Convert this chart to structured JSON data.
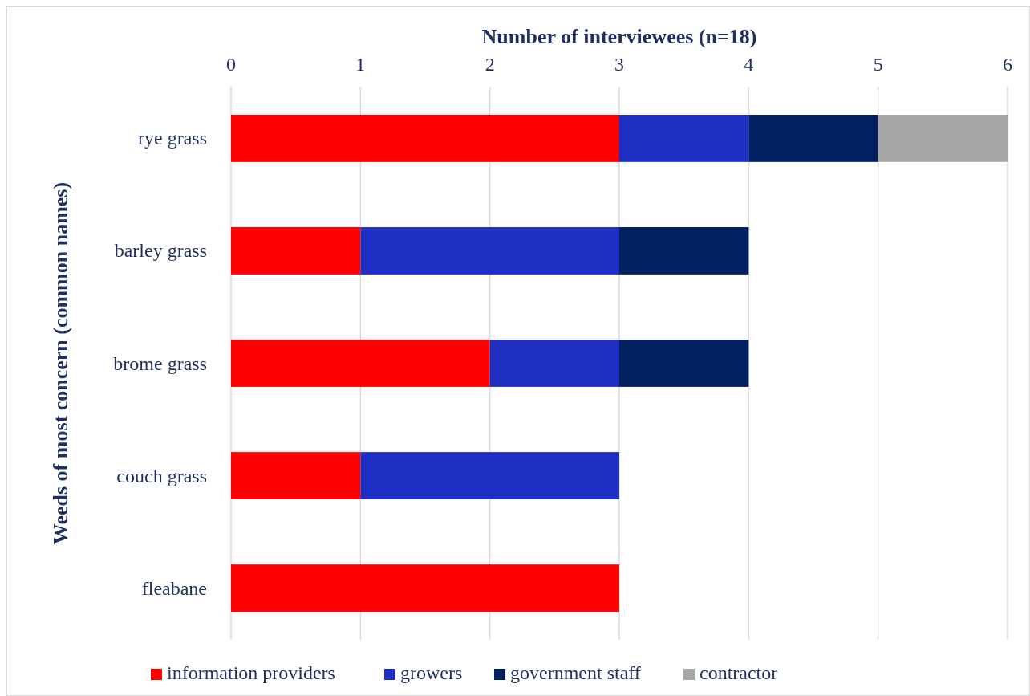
{
  "chart_data": {
    "type": "bar",
    "orientation": "horizontal",
    "stacked": true,
    "xlabel": "Number of interviewees (n=18)",
    "ylabel": "Weeds of most concern (common names)",
    "categories": [
      "rye grass",
      "barley grass",
      "brome grass",
      "couch grass",
      "fleabane"
    ],
    "series": [
      {
        "name": "information providers",
        "color": "#ff0000",
        "values": [
          3,
          1,
          2,
          1,
          3
        ]
      },
      {
        "name": "growers",
        "color": "#1f2fc4",
        "values": [
          1,
          2,
          1,
          2,
          null
        ]
      },
      {
        "name": "government staff",
        "color": "#00205f",
        "values": [
          1,
          1,
          1,
          null,
          null
        ]
      },
      {
        "name": "contractor",
        "color": "#a6a6a6",
        "values": [
          1,
          null,
          null,
          null,
          null
        ]
      }
    ],
    "xlim": [
      0,
      6
    ],
    "xticks": [
      0,
      1,
      2,
      3,
      4,
      5,
      6
    ],
    "grid": "x",
    "legend": "bottom"
  }
}
